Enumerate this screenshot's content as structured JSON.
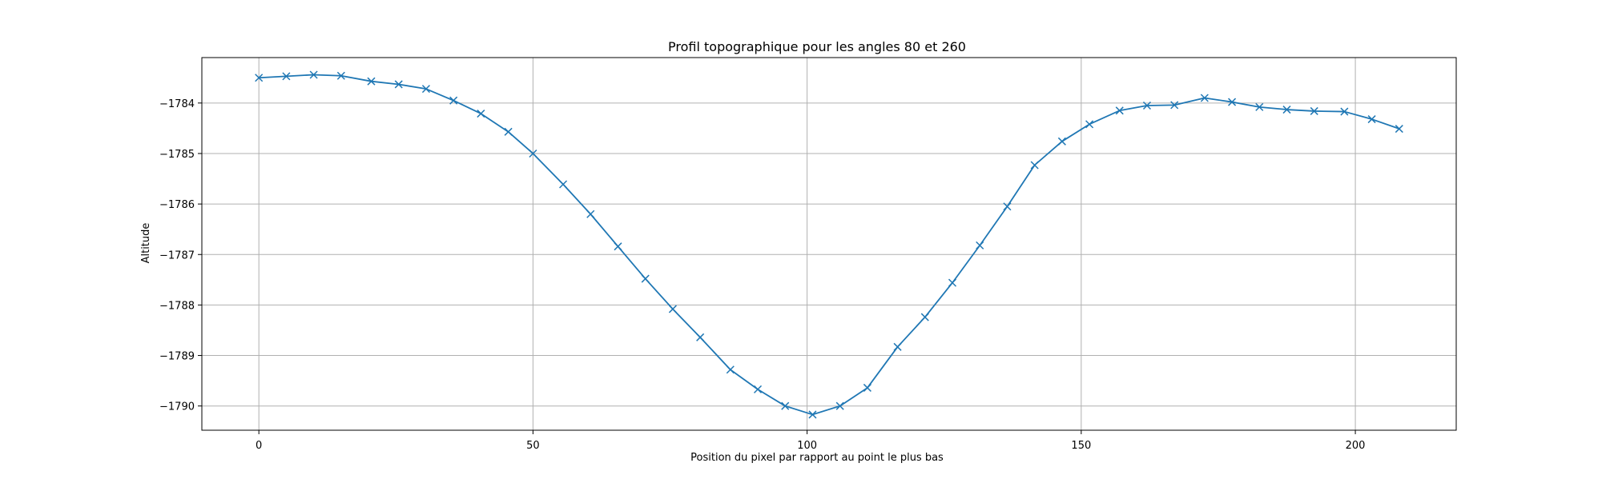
{
  "chart_data": {
    "type": "line",
    "title": "Profil topographique pour les angles 80 et 260",
    "xlabel": "Position du pixel par rapport au point le plus bas",
    "ylabel": "Altitude",
    "xlim": [
      -10.4,
      218.4
    ],
    "ylim": [
      -1790.48,
      -1783.1
    ],
    "xticks": [
      0,
      50,
      100,
      150,
      200
    ],
    "xtick_labels": [
      "0",
      "50",
      "100",
      "150",
      "200"
    ],
    "yticks": [
      -1784,
      -1785,
      -1786,
      -1787,
      -1788,
      -1789,
      -1790
    ],
    "ytick_labels": [
      "−1784",
      "−1785",
      "−1786",
      "−1787",
      "−1788",
      "−1789",
      "−1790"
    ],
    "grid": true,
    "marker": "x",
    "line_color": "#1f77b4",
    "series": [
      {
        "x": [
          0,
          5,
          10,
          15,
          20.5,
          25.5,
          30.5,
          35.5,
          40.5,
          45.5,
          50,
          55.5,
          60.5,
          65.5,
          70.5,
          75.5,
          80.5,
          86,
          91,
          96,
          101,
          106,
          111,
          116.5,
          121.5,
          126.5,
          131.5,
          136.5,
          141.5,
          146.5,
          151.5,
          157,
          162,
          167,
          172.5,
          177.5,
          182.5,
          187.5,
          192.5,
          198,
          203,
          208
        ],
        "y": [
          -1783.5,
          -1783.47,
          -1783.44,
          -1783.46,
          -1783.57,
          -1783.63,
          -1783.72,
          -1783.95,
          -1784.21,
          -1784.57,
          -1785.0,
          -1785.61,
          -1786.2,
          -1786.84,
          -1787.48,
          -1788.08,
          -1788.64,
          -1789.28,
          -1789.67,
          -1790.0,
          -1790.17,
          -1790.0,
          -1789.64,
          -1788.83,
          -1788.24,
          -1787.56,
          -1786.82,
          -1786.05,
          -1785.23,
          -1784.76,
          -1784.42,
          -1784.15,
          -1784.05,
          -1784.04,
          -1783.9,
          -1783.98,
          -1784.08,
          -1784.13,
          -1784.16,
          -1784.17,
          -1784.32,
          -1784.51
        ]
      }
    ]
  }
}
